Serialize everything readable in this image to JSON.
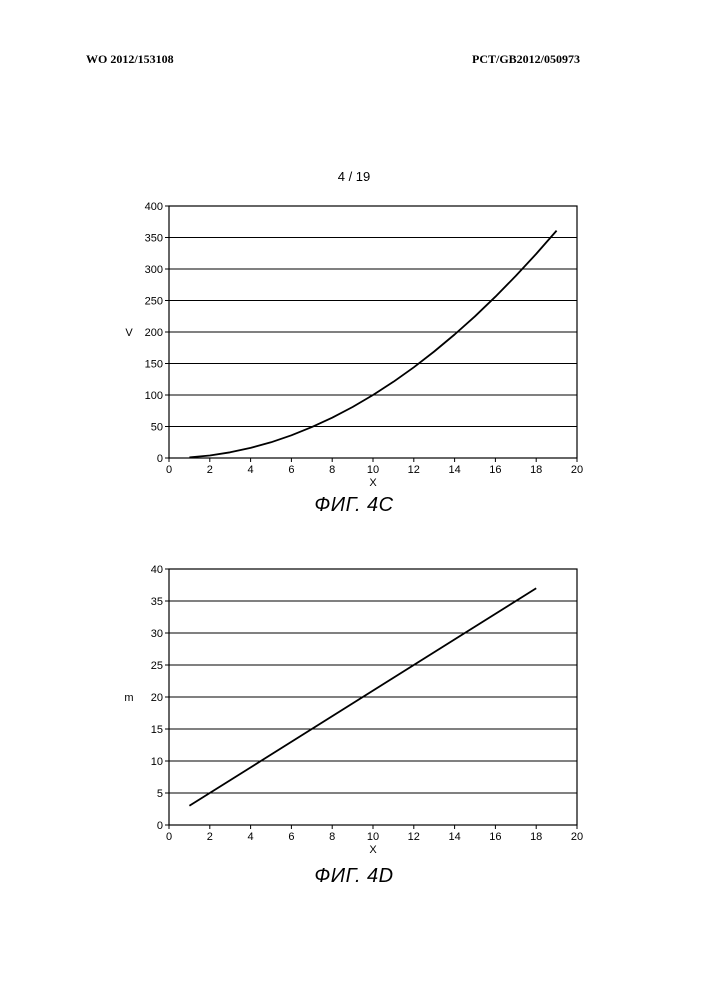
{
  "header": {
    "left": "WO 2012/153108",
    "right": "PCT/GB2012/050973"
  },
  "page_number": "4 / 19",
  "chart_data": [
    {
      "type": "line",
      "caption": "ФИГ. 4C",
      "xlabel": "X",
      "ylabel": "V",
      "xlim": [
        0,
        20
      ],
      "ylim": [
        0,
        400
      ],
      "xticks": [
        0,
        2,
        4,
        6,
        8,
        10,
        12,
        14,
        16,
        18,
        20
      ],
      "yticks": [
        0,
        50,
        100,
        150,
        200,
        250,
        300,
        350,
        400
      ],
      "grid": "horizontal",
      "series": [
        {
          "x": [
            1,
            2,
            3,
            4,
            5,
            6,
            7,
            8,
            9,
            10,
            11,
            12,
            13,
            14,
            15,
            16,
            17,
            18,
            19
          ],
          "values": [
            1,
            4,
            9,
            16,
            25,
            36,
            49,
            64,
            81,
            100,
            121,
            144,
            169,
            196,
            225,
            256,
            289,
            324,
            361
          ]
        }
      ]
    },
    {
      "type": "line",
      "caption": "ФИГ. 4D",
      "xlabel": "X",
      "ylabel": "m",
      "xlim": [
        0,
        20
      ],
      "ylim": [
        0,
        40
      ],
      "xticks": [
        0,
        2,
        4,
        6,
        8,
        10,
        12,
        14,
        16,
        18,
        20
      ],
      "yticks": [
        0,
        5,
        10,
        15,
        20,
        25,
        30,
        35,
        40
      ],
      "grid": "horizontal",
      "series": [
        {
          "x": [
            1,
            18
          ],
          "values": [
            3,
            37
          ]
        }
      ]
    }
  ]
}
